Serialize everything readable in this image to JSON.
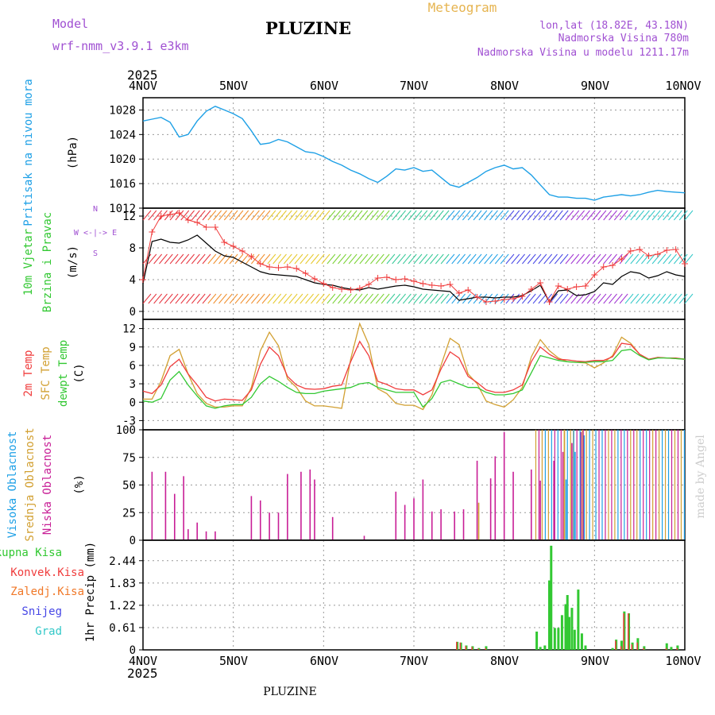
{
  "header": {
    "model_label": "Model",
    "model_name": "wrf-nmm_v3.9.1 e3km",
    "station": "PLUZINE",
    "product": "Meteogram",
    "coords": "lon,lat (18.82E, 43.18N)",
    "elevation": "Nadmorska Visina 780m",
    "model_elevation": "Nadmorska Visina u modelu 1211.17m",
    "year": "2025",
    "footer": "PLUZINE",
    "watermark": "made by Angel"
  },
  "colors": {
    "pressure": "#1ea0e6",
    "temp": "#f03c3c",
    "sfc_temp": "#d2a032",
    "dewpt": "#32c832",
    "wind_speed": "#000000",
    "gust": "#f03c3c",
    "high_cloud": "#1ea0e6",
    "mid_cloud": "#d2a032",
    "low_cloud": "#c81e96",
    "total_precip": "#32c832",
    "conv_precip": "#f03c3c",
    "frz_precip": "#f07828",
    "snow": "#4646e6",
    "hail": "#32c8c8",
    "label_purple": "#a050d2",
    "label_gold": "#e6b450"
  },
  "chart_data": [
    {
      "type": "line",
      "title": "Pritisak na nivou mora",
      "ylabel": "(hPa)",
      "ylim": [
        1012,
        1030
      ],
      "yticks": [
        1012,
        1016,
        1020,
        1024,
        1028
      ],
      "x_days": [
        0,
        0.1,
        0.2,
        0.3,
        0.4,
        0.5,
        0.6,
        0.7,
        0.8,
        0.9,
        1.0,
        1.1,
        1.2,
        1.3,
        1.4,
        1.5,
        1.6,
        1.7,
        1.8,
        1.9,
        2.0,
        2.1,
        2.2,
        2.3,
        2.4,
        2.5,
        2.6,
        2.7,
        2.8,
        2.9,
        3.0,
        3.1,
        3.2,
        3.3,
        3.4,
        3.5,
        3.6,
        3.7,
        3.8,
        3.9,
        4.0,
        4.1,
        4.2,
        4.3,
        4.4,
        4.5,
        4.6,
        4.7,
        4.8,
        4.9,
        5.0,
        5.1,
        5.2,
        5.3,
        5.4,
        5.5,
        5.6,
        5.7,
        5.8,
        5.9,
        6.0
      ],
      "series": [
        {
          "name": "Pritisak na nivou mora",
          "values": [
            1026.2,
            1026.5,
            1026.8,
            1026.0,
            1023.6,
            1024.0,
            1026.2,
            1027.8,
            1028.6,
            1028.0,
            1027.4,
            1026.6,
            1024.6,
            1022.4,
            1022.6,
            1023.2,
            1022.8,
            1022.0,
            1021.2,
            1021.0,
            1020.4,
            1019.6,
            1019.0,
            1018.2,
            1017.6,
            1016.8,
            1016.2,
            1017.2,
            1018.4,
            1018.2,
            1018.6,
            1018.0,
            1018.2,
            1017.0,
            1015.8,
            1015.4,
            1016.2,
            1017.0,
            1018.0,
            1018.6,
            1019.0,
            1018.4,
            1018.6,
            1017.4,
            1015.8,
            1014.2,
            1013.8,
            1013.8,
            1013.6,
            1013.6,
            1013.3,
            1013.8,
            1014.0,
            1014.2,
            1014.0,
            1014.2,
            1014.6,
            1014.9,
            1014.7,
            1014.6,
            1014.5
          ]
        }
      ]
    },
    {
      "type": "line",
      "title": "10m Vjetar",
      "title2": "Brzina i Pravac",
      "ylabel": "(m/s)",
      "compass_ns": "N",
      "compass_ew": "W <-|-> E",
      "compass_s": "S",
      "ylim": [
        -1,
        13
      ],
      "yticks": [
        0,
        4,
        8,
        12
      ],
      "x_days": [
        0,
        0.1,
        0.2,
        0.3,
        0.4,
        0.5,
        0.6,
        0.7,
        0.8,
        0.9,
        1.0,
        1.1,
        1.2,
        1.3,
        1.4,
        1.5,
        1.6,
        1.7,
        1.8,
        1.9,
        2.0,
        2.1,
        2.2,
        2.3,
        2.4,
        2.5,
        2.6,
        2.7,
        2.8,
        2.9,
        3.0,
        3.1,
        3.2,
        3.3,
        3.4,
        3.5,
        3.6,
        3.7,
        3.8,
        3.9,
        4.0,
        4.1,
        4.2,
        4.3,
        4.4,
        4.5,
        4.6,
        4.7,
        4.8,
        4.9,
        5.0,
        5.1,
        5.2,
        5.3,
        5.4,
        5.5,
        5.6,
        5.7,
        5.8,
        5.9,
        6.0
      ],
      "series": [
        {
          "name": "wind speed",
          "values": [
            3.5,
            8.8,
            9.1,
            8.7,
            8.6,
            9.0,
            9.6,
            8.6,
            7.6,
            7.0,
            6.8,
            6.2,
            5.6,
            5.0,
            4.7,
            4.6,
            4.5,
            4.4,
            4.0,
            3.6,
            3.4,
            3.3,
            3.0,
            2.8,
            2.7,
            3.0,
            2.8,
            3.0,
            3.2,
            3.3,
            3.1,
            2.8,
            2.7,
            2.6,
            2.5,
            1.4,
            1.6,
            1.8,
            1.8,
            1.7,
            1.8,
            1.8,
            2.0,
            2.6,
            3.3,
            1.2,
            2.6,
            2.7,
            2.0,
            2.1,
            2.5,
            3.6,
            3.4,
            4.4,
            5.0,
            4.8,
            4.2,
            4.5,
            5.0,
            4.6,
            4.4
          ]
        },
        {
          "name": "gust",
          "values": [
            4.0,
            10.0,
            12.0,
            12.2,
            12.4,
            11.5,
            11.2,
            10.6,
            10.6,
            8.7,
            8.2,
            7.6,
            6.9,
            6.0,
            5.6,
            5.5,
            5.6,
            5.4,
            4.8,
            4.1,
            3.5,
            3.0,
            2.8,
            2.7,
            2.9,
            3.4,
            4.2,
            4.3,
            4.0,
            4.1,
            3.8,
            3.5,
            3.3,
            3.2,
            3.4,
            2.3,
            2.7,
            1.8,
            1.2,
            1.3,
            1.5,
            1.6,
            1.9,
            2.8,
            3.6,
            1.2,
            3.2,
            2.8,
            3.1,
            3.2,
            4.6,
            5.6,
            5.8,
            6.6,
            7.6,
            7.8,
            7.0,
            7.2,
            7.7,
            7.8,
            6.0
          ]
        }
      ]
    },
    {
      "type": "line",
      "title": "2m Temp",
      "title2": "SFC Temp",
      "title3": "dewpt Temp",
      "ylabel": "(C)",
      "ylim": [
        -4.5,
        13.5
      ],
      "yticks": [
        -3,
        0,
        3,
        6,
        9,
        12
      ],
      "x_days": [
        0,
        0.1,
        0.2,
        0.3,
        0.4,
        0.5,
        0.6,
        0.7,
        0.8,
        0.9,
        1.0,
        1.1,
        1.2,
        1.3,
        1.4,
        1.5,
        1.6,
        1.7,
        1.8,
        1.9,
        2.0,
        2.1,
        2.2,
        2.3,
        2.4,
        2.5,
        2.6,
        2.7,
        2.8,
        2.9,
        3.0,
        3.1,
        3.2,
        3.3,
        3.4,
        3.5,
        3.6,
        3.7,
        3.8,
        3.9,
        4.0,
        4.1,
        4.2,
        4.3,
        4.4,
        4.5,
        4.6,
        4.7,
        4.8,
        4.9,
        5.0,
        5.1,
        5.2,
        5.3,
        5.4,
        5.5,
        5.6,
        5.7,
        5.8,
        5.9,
        6.0
      ],
      "series": [
        {
          "name": "2m Temp",
          "values": [
            1.8,
            1.4,
            2.8,
            5.8,
            7.0,
            4.6,
            2.8,
            0.8,
            0.2,
            0.5,
            0.4,
            0.3,
            2.0,
            6.2,
            9.0,
            7.6,
            4.2,
            2.8,
            2.2,
            2.1,
            2.2,
            2.6,
            2.8,
            6.6,
            9.9,
            7.6,
            3.4,
            2.9,
            2.2,
            2.0,
            2.0,
            1.2,
            2.0,
            5.4,
            8.2,
            7.2,
            4.2,
            3.2,
            2.0,
            1.6,
            1.6,
            2.0,
            2.8,
            6.6,
            9.0,
            7.8,
            7.0,
            6.9,
            6.7,
            6.6,
            6.8,
            6.8,
            7.4,
            9.6,
            9.4,
            7.8,
            7.0,
            7.3,
            7.2,
            7.2,
            7.0
          ]
        },
        {
          "name": "SFC Temp",
          "values": [
            0.5,
            0.5,
            3.4,
            7.6,
            8.6,
            4.6,
            1.4,
            -0.2,
            -0.8,
            -0.8,
            -0.6,
            -0.6,
            2.4,
            8.4,
            11.4,
            9.2,
            3.8,
            2.4,
            0.2,
            -0.6,
            -0.6,
            -0.8,
            -1.0,
            7.0,
            12.8,
            9.4,
            2.2,
            1.4,
            -0.2,
            -0.5,
            -0.5,
            -1.2,
            1.2,
            6.0,
            10.4,
            9.4,
            4.6,
            3.0,
            0.2,
            -0.4,
            -0.8,
            0.4,
            2.4,
            7.4,
            10.2,
            8.4,
            7.2,
            6.6,
            6.5,
            6.4,
            5.6,
            6.4,
            7.6,
            10.6,
            9.6,
            7.8,
            7.0,
            7.3,
            7.2,
            7.1,
            7.0
          ]
        },
        {
          "name": "dewpt Temp",
          "values": [
            0.2,
            0.0,
            0.6,
            3.6,
            5.0,
            2.8,
            1.0,
            -0.6,
            -1.0,
            -0.6,
            -0.4,
            -0.4,
            0.8,
            3.0,
            4.2,
            3.4,
            2.4,
            1.6,
            1.4,
            1.4,
            1.8,
            2.0,
            2.2,
            2.4,
            3.0,
            3.2,
            2.4,
            2.0,
            1.6,
            1.6,
            1.6,
            -0.8,
            0.6,
            3.2,
            3.6,
            3.0,
            2.4,
            2.4,
            1.6,
            1.2,
            1.2,
            1.4,
            2.0,
            4.8,
            7.6,
            7.2,
            6.8,
            6.6,
            6.5,
            6.5,
            6.6,
            6.6,
            6.8,
            8.4,
            8.6,
            7.6,
            6.9,
            7.2,
            7.2,
            7.1,
            7.0
          ]
        }
      ]
    },
    {
      "type": "bar",
      "title": "Visoka Oblacnost",
      "title2": "Srednja Oblacnost",
      "title3": "Niska Oblacnost",
      "ylabel": "(%)",
      "ylim": [
        0,
        100
      ],
      "yticks": [
        0,
        25,
        50,
        75,
        100
      ],
      "x_days": [
        0.1,
        0.25,
        0.35,
        0.45,
        0.5,
        0.6,
        0.7,
        0.8,
        1.2,
        1.3,
        1.4,
        1.5,
        1.6,
        1.75,
        1.85,
        1.9,
        2.1,
        2.45,
        2.8,
        2.9,
        3.0,
        3.1,
        3.2,
        3.3,
        3.45,
        3.55,
        3.7,
        3.85,
        3.9,
        4.0,
        4.1,
        4.3,
        4.4,
        4.55,
        4.65,
        4.75,
        4.85
      ],
      "series": [
        {
          "name": "Niska Oblacnost",
          "values": [
            62,
            62,
            42,
            58,
            10,
            16,
            8,
            8,
            40,
            36,
            25,
            25,
            60,
            62,
            64,
            55,
            21,
            4,
            44,
            32,
            38,
            55,
            26,
            28,
            26,
            28,
            72,
            56,
            76,
            98,
            62,
            64,
            54,
            72,
            80,
            88,
            98
          ]
        },
        {
          "name": "Srednja Oblacnost",
          "values": [
            0,
            0,
            0,
            0,
            0,
            0,
            0,
            0,
            0,
            0,
            0,
            0,
            0,
            0,
            0,
            0,
            0,
            0,
            0,
            0,
            0,
            0,
            0,
            0,
            0,
            0,
            34,
            0,
            0,
            0,
            0,
            0,
            0,
            0,
            100,
            100,
            100
          ]
        },
        {
          "name": "Visoka Oblacnost",
          "values": [
            0,
            0,
            0,
            0,
            0,
            0,
            0,
            0,
            0,
            0,
            0,
            0,
            0,
            0,
            0,
            0,
            0,
            0,
            0,
            0,
            0,
            0,
            0,
            0,
            0,
            0,
            0,
            0,
            0,
            0,
            0,
            0,
            0,
            0,
            55,
            80,
            95
          ]
        }
      ]
    },
    {
      "type": "bar",
      "title": "Ukupna Kisa",
      "title2": "Konvek.Kisa",
      "title3": "Zaledj.Kisa",
      "title4": "Snijeg",
      "title5": "Grad",
      "ylabel": "1hr Precip (mm)",
      "ylim": [
        0,
        3.0
      ],
      "yticks": [
        0,
        0.61,
        1.22,
        1.83,
        2.44
      ],
      "x_days": [
        3.48,
        3.52,
        3.58,
        3.65,
        3.72,
        3.8,
        4.36,
        4.4,
        4.45,
        4.5,
        4.52,
        4.56,
        4.6,
        4.64,
        4.68,
        4.7,
        4.72,
        4.75,
        4.78,
        4.82,
        4.86,
        4.9,
        5.2,
        5.24,
        5.3,
        5.33,
        5.38,
        5.42,
        5.48,
        5.55,
        5.8,
        5.85,
        5.92
      ],
      "series": [
        {
          "name": "Ukupna Kisa",
          "values": [
            0.22,
            0.2,
            0.12,
            0.1,
            0.05,
            0.1,
            0.5,
            0.08,
            0.12,
            1.9,
            2.85,
            0.6,
            0.6,
            0.95,
            1.25,
            1.5,
            0.9,
            1.15,
            0.55,
            1.65,
            0.45,
            0.12,
            0.05,
            0.28,
            0.25,
            1.05,
            1.0,
            0.2,
            0.32,
            0.1,
            0.18,
            0.08,
            0.12
          ]
        },
        {
          "name": "Konvek.Kisa",
          "values": [
            0.22,
            0.2,
            0.1,
            0.08,
            0.03,
            0.05,
            0.0,
            0.0,
            0.0,
            0.0,
            0.0,
            0.0,
            0.0,
            0.0,
            0.0,
            0.0,
            0.0,
            0.0,
            0.0,
            0.0,
            0.0,
            0.0,
            0.0,
            0.25,
            0.1,
            1.0,
            1.0,
            0.15,
            0.2,
            0.05,
            0.05,
            0.0,
            0.05
          ]
        }
      ]
    }
  ],
  "x_axis": {
    "labels": [
      "4NOV",
      "5NOV",
      "6NOV",
      "7NOV",
      "8NOV",
      "9NOV",
      "10NOV"
    ]
  }
}
